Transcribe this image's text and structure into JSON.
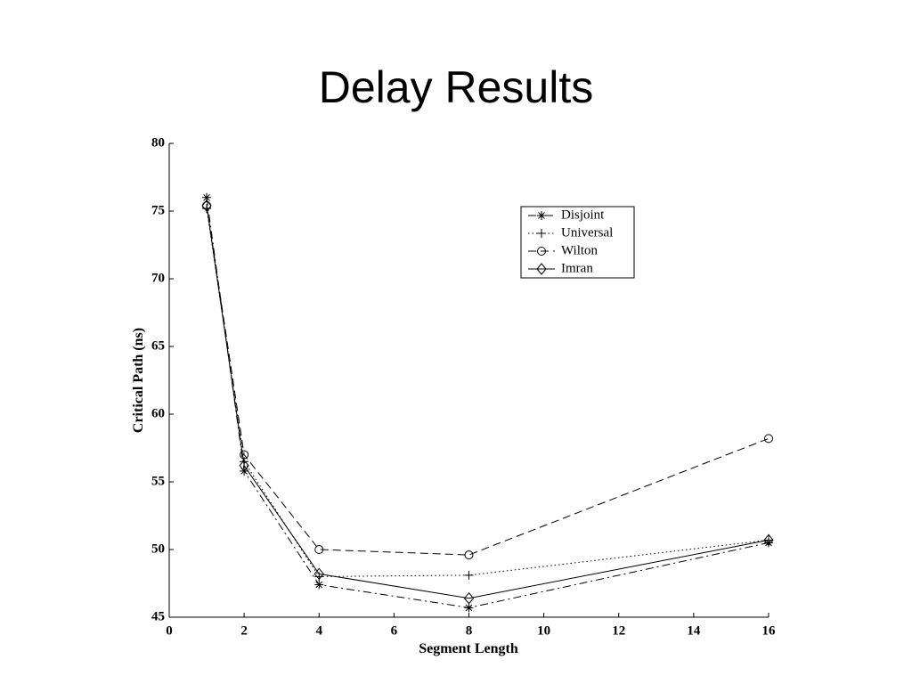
{
  "chart_data": {
    "type": "line",
    "title": "Delay Results",
    "x_label": "Segment Length",
    "y_label": "Critical Path (ns)",
    "x": [
      1,
      2,
      4,
      8,
      16
    ],
    "series": [
      {
        "name": "Disjoint",
        "color": "#000000",
        "style": "dashdot",
        "marker": "star",
        "values": [
          76.0,
          55.8,
          47.4,
          45.7,
          50.5
        ]
      },
      {
        "name": "Universal",
        "color": "#000000",
        "style": "dotted",
        "marker": "plus",
        "values": [
          75.2,
          56.5,
          48.0,
          48.1,
          50.7
        ]
      },
      {
        "name": "Wilton",
        "color": "#000000",
        "style": "dashed",
        "marker": "circle",
        "values": [
          75.4,
          57.0,
          50.0,
          49.6,
          58.2
        ]
      },
      {
        "name": "Imran",
        "color": "#000000",
        "style": "solid",
        "marker": "diamond",
        "values": [
          75.4,
          56.2,
          48.2,
          46.4,
          50.7
        ]
      }
    ],
    "xlim": [
      0,
      16
    ],
    "xticks": [
      0,
      2,
      4,
      6,
      8,
      10,
      12,
      14,
      16
    ],
    "ylim": [
      45,
      80
    ],
    "yticks": [
      45,
      50,
      55,
      60,
      65,
      70,
      75,
      80
    ],
    "grid": false,
    "legend": "upper right"
  }
}
